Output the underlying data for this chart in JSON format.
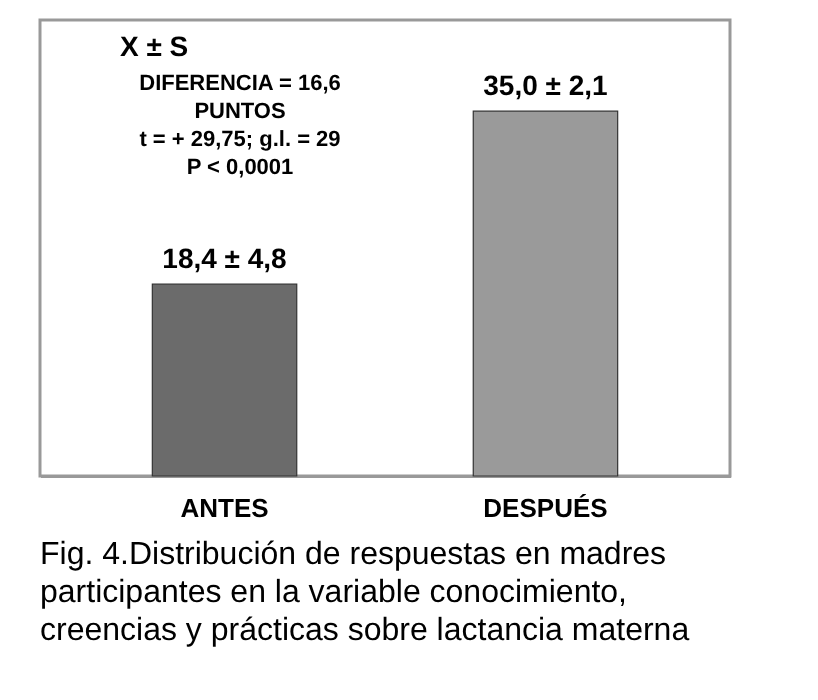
{
  "chart_data": {
    "type": "bar",
    "categories": [
      "ANTES",
      "DESPUÉS"
    ],
    "values": [
      18.4,
      35.0
    ],
    "colors": [
      "#6b6b6b",
      "#9a9a9a"
    ],
    "value_labels": [
      "18,4 ± 4,8",
      "35,0 ± 2,1"
    ],
    "grid": false,
    "annotations": [
      "X ± S",
      "DIFERENCIA = 16,6",
      "PUNTOS",
      "t =  + 29,75;  g.l. = 29",
      "P < 0,0001",
      "Fig. 4.Distribución de respuestas en madres participantes en la variable conocimiento, creencias y prácticas sobre lactancia materna"
    ]
  }
}
